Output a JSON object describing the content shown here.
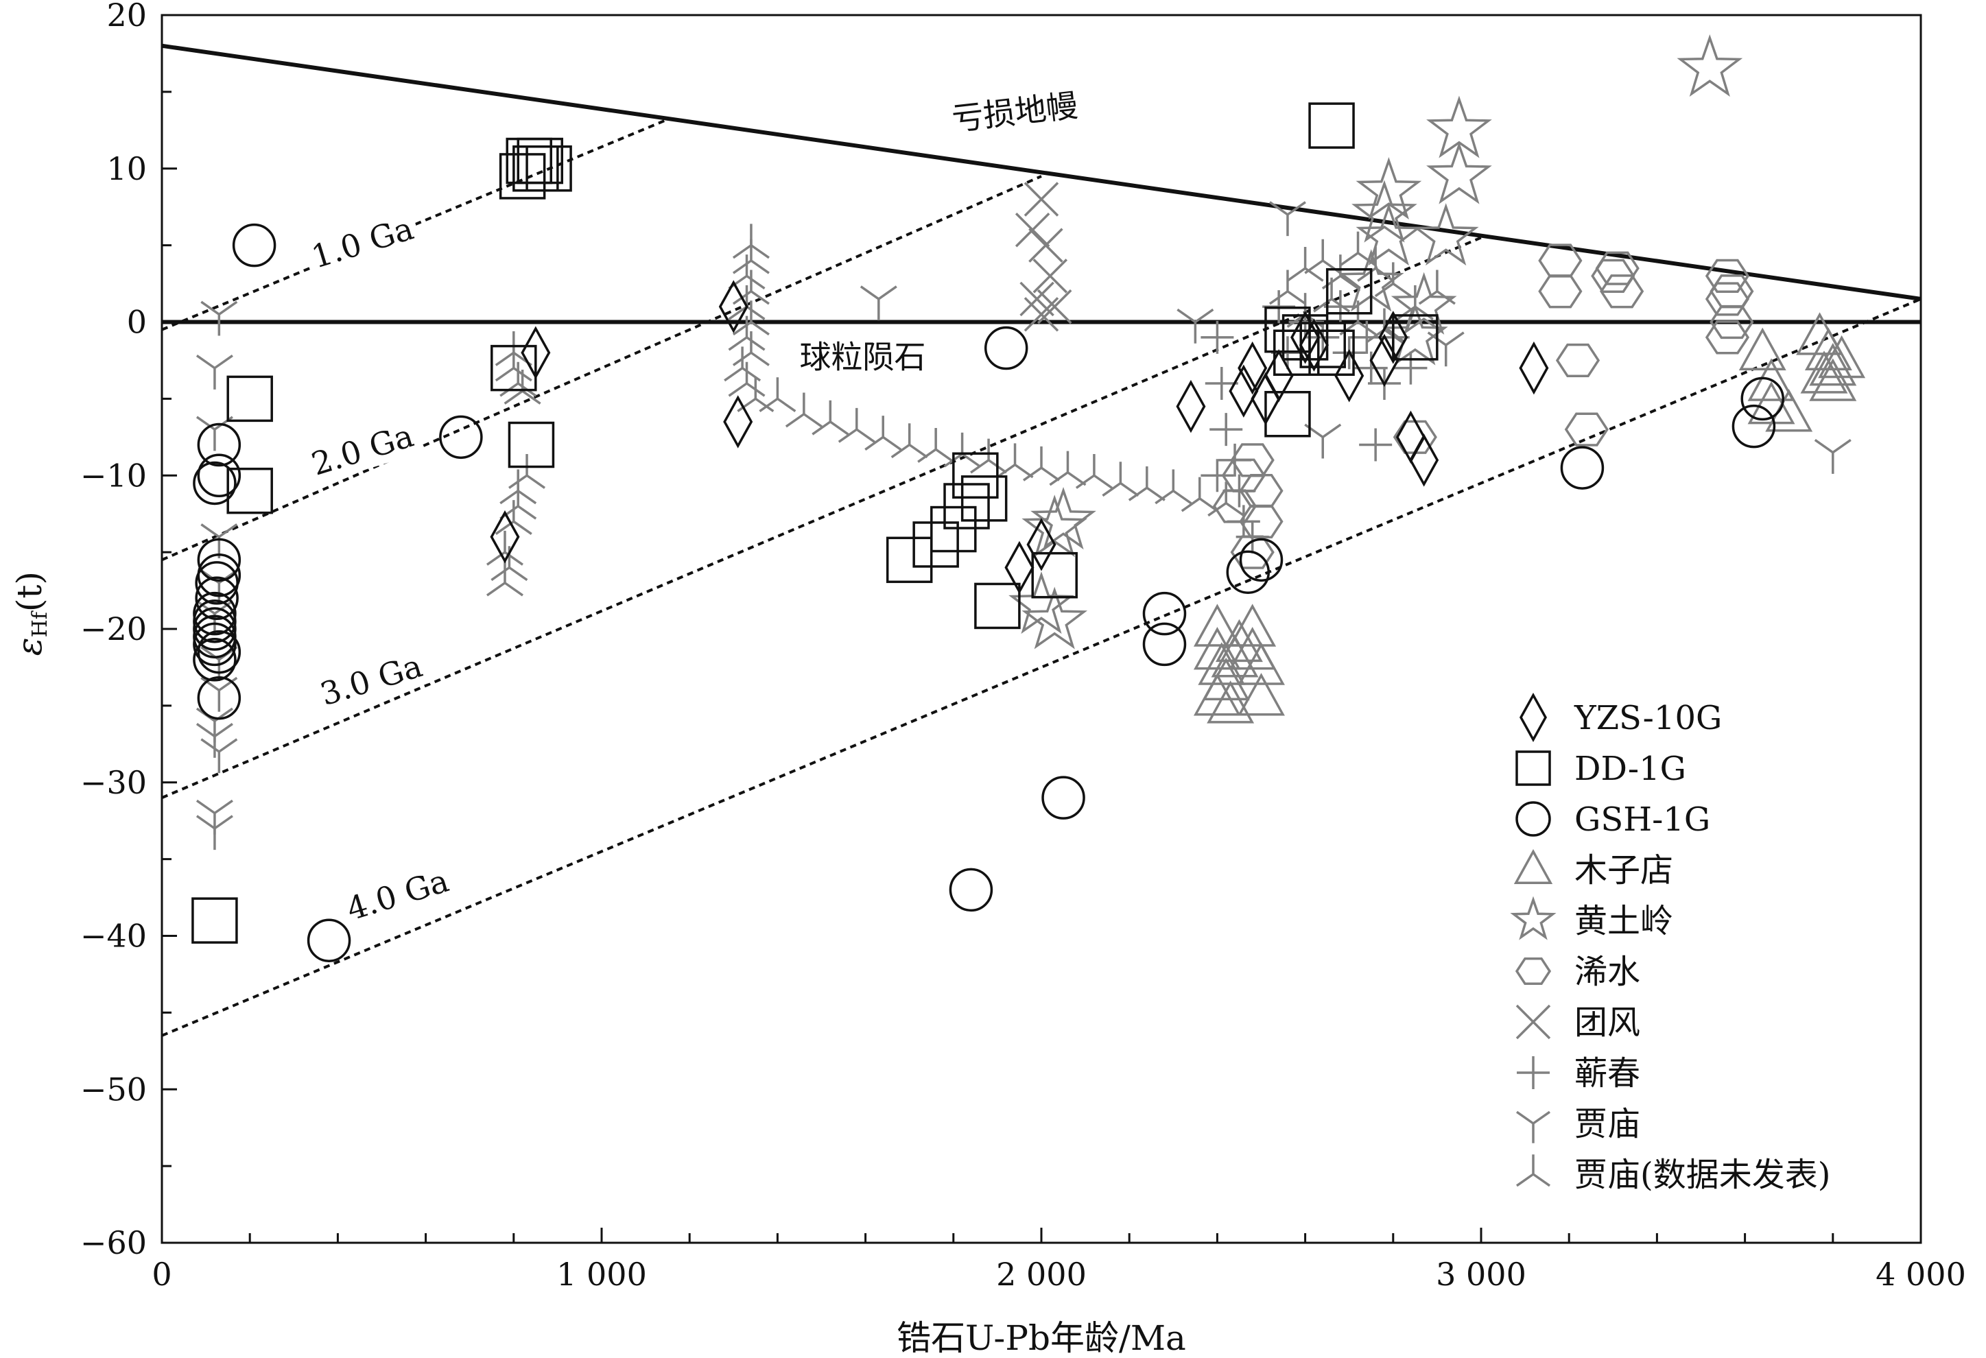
{
  "chart_data": {
    "type": "scatter",
    "title": "",
    "xlabel": "锆石U-Pb年龄/Ma",
    "ylabel_main": "ε",
    "ylabel_sub": "Hf",
    "ylabel_tail": "(t)",
    "xlim": [
      0,
      4000
    ],
    "ylim": [
      -60,
      20
    ],
    "grid": false,
    "legend_position": "bottom-right",
    "x_ticks": [
      {
        "value": 0,
        "label": "0"
      },
      {
        "value": 1000,
        "label": "1 000"
      },
      {
        "value": 2000,
        "label": "2 000"
      },
      {
        "value": 3000,
        "label": "3 000"
      },
      {
        "value": 4000,
        "label": "4 000"
      }
    ],
    "y_ticks": [
      {
        "value": 20,
        "label": "20"
      },
      {
        "value": 10,
        "label": "10"
      },
      {
        "value": 0,
        "label": "0"
      },
      {
        "value": -10,
        "label": "−10"
      },
      {
        "value": -20,
        "label": "−20"
      },
      {
        "value": -30,
        "label": "−30"
      },
      {
        "value": -40,
        "label": "−40"
      },
      {
        "value": -50,
        "label": "−50"
      },
      {
        "value": -60,
        "label": "−60"
      }
    ],
    "reference_lines": [
      {
        "label": "亏损地幔",
        "style": "solid",
        "x": [
          0,
          4000
        ],
        "y": [
          18,
          1.5
        ],
        "label_at": [
          1800,
          12.5
        ],
        "angle": -6.5
      },
      {
        "label": "球粒陨石",
        "style": "solid",
        "x": [
          0,
          4000
        ],
        "y": [
          0,
          0
        ],
        "label_at": [
          1450,
          -3
        ]
      },
      {
        "label": "1.0 Ga",
        "style": "dotted",
        "x": [
          0,
          1150
        ],
        "y": [
          -0.5,
          13.2
        ],
        "label_at": [
          350,
          3.5
        ],
        "angle": -17
      },
      {
        "label": "2.0 Ga",
        "style": "dotted",
        "x": [
          0,
          2000
        ],
        "y": [
          -15.5,
          9.5
        ],
        "label_at": [
          350,
          -10
        ],
        "angle": -17
      },
      {
        "label": "3.0 Ga",
        "style": "dotted",
        "x": [
          0,
          3000
        ],
        "y": [
          -31,
          5.5
        ],
        "label_at": [
          370,
          -25
        ],
        "angle": -17
      },
      {
        "label": "4.0 Ga",
        "style": "dotted",
        "x": [
          0,
          4000
        ],
        "y": [
          -46.5,
          1.5
        ],
        "label_at": [
          430,
          -39
        ],
        "angle": -17
      }
    ],
    "series": [
      {
        "name": "YZS-10G",
        "marker": "diamond",
        "color": "#111111",
        "points": [
          [
            1300,
            1
          ],
          [
            1310,
            -6.5
          ],
          [
            850,
            -2
          ],
          [
            780,
            -14
          ],
          [
            1950,
            -16
          ],
          [
            2000,
            -14.5
          ],
          [
            2340,
            -5.5
          ],
          [
            2460,
            -4.5
          ],
          [
            2480,
            -3
          ],
          [
            2510,
            -5
          ],
          [
            2540,
            -3.5
          ],
          [
            2600,
            -1
          ],
          [
            2620,
            -1.5
          ],
          [
            2700,
            -3.5
          ],
          [
            2780,
            -2.5
          ],
          [
            2800,
            -1
          ],
          [
            2840,
            -7.5
          ],
          [
            2870,
            -9
          ],
          [
            3120,
            -3
          ]
        ]
      },
      {
        "name": "DD-1G",
        "marker": "square",
        "color": "#111111",
        "points": [
          [
            820,
            9.5
          ],
          [
            835,
            10.5
          ],
          [
            850,
            10
          ],
          [
            860,
            10.5
          ],
          [
            880,
            10
          ],
          [
            200,
            -5
          ],
          [
            200,
            -11
          ],
          [
            800,
            -3
          ],
          [
            840,
            -8
          ],
          [
            1800,
            -13.5
          ],
          [
            1830,
            -12
          ],
          [
            1850,
            -10
          ],
          [
            1870,
            -11.5
          ],
          [
            1700,
            -15.5
          ],
          [
            1760,
            -14.5
          ],
          [
            1900,
            -18.5
          ],
          [
            2030,
            -16.5
          ],
          [
            2560,
            -0.5
          ],
          [
            2580,
            -2
          ],
          [
            2600,
            -1
          ],
          [
            2640,
            -1.5
          ],
          [
            2660,
            -2
          ],
          [
            2700,
            2
          ],
          [
            2850,
            -1
          ],
          [
            2560,
            -6
          ],
          [
            2660,
            12.8
          ],
          [
            120,
            -39
          ]
        ]
      },
      {
        "name": "GSH-1G",
        "marker": "circle",
        "color": "#111111",
        "points": [
          [
            210,
            5
          ],
          [
            130,
            -8
          ],
          [
            130,
            -10
          ],
          [
            120,
            -10.5
          ],
          [
            130,
            -15.5
          ],
          [
            130,
            -16.5
          ],
          [
            125,
            -17
          ],
          [
            125,
            -18
          ],
          [
            120,
            -19
          ],
          [
            120,
            -19.5
          ],
          [
            120,
            -20
          ],
          [
            120,
            -20.5
          ],
          [
            120,
            -21
          ],
          [
            130,
            -21.5
          ],
          [
            120,
            -22
          ],
          [
            130,
            -24.5
          ],
          [
            680,
            -7.5
          ],
          [
            1920,
            -1.7
          ],
          [
            2280,
            -19
          ],
          [
            2280,
            -21
          ],
          [
            2470,
            -16.3
          ],
          [
            2500,
            -15.5
          ],
          [
            3230,
            -9.5
          ],
          [
            3620,
            -6.8
          ],
          [
            3640,
            -5
          ],
          [
            2050,
            -31
          ],
          [
            1840,
            -37
          ],
          [
            380,
            -40.3
          ]
        ]
      },
      {
        "name": "木子店",
        "marker": "triangle",
        "color": "#808080",
        "points": [
          [
            2400,
            -20
          ],
          [
            2400,
            -21.5
          ],
          [
            2410,
            -22.5
          ],
          [
            2420,
            -23.5
          ],
          [
            2400,
            -24.5
          ],
          [
            2430,
            -25
          ],
          [
            2440,
            -22
          ],
          [
            2450,
            -21
          ],
          [
            2480,
            -20
          ],
          [
            2480,
            -21.5
          ],
          [
            2500,
            -22.5
          ],
          [
            2500,
            -24.5
          ],
          [
            3640,
            -2
          ],
          [
            3660,
            -4
          ],
          [
            3660,
            -5.5
          ],
          [
            3700,
            -6
          ],
          [
            3770,
            -1
          ],
          [
            3790,
            -2
          ],
          [
            3800,
            -3
          ],
          [
            3820,
            -2.5
          ],
          [
            3780,
            -3.5
          ],
          [
            3800,
            -4
          ]
        ]
      },
      {
        "name": "黄土岭",
        "marker": "star",
        "color": "#808080",
        "points": [
          [
            3520,
            16.5
          ],
          [
            2950,
            12.5
          ],
          [
            2950,
            9.5
          ],
          [
            2790,
            8.5
          ],
          [
            2780,
            7
          ],
          [
            2790,
            5.5
          ],
          [
            2920,
            5.5
          ],
          [
            2750,
            2.5
          ],
          [
            2870,
            1
          ],
          [
            2850,
            -1
          ],
          [
            2030,
            -13.5
          ],
          [
            2000,
            -18.5
          ],
          [
            2030,
            -19.5
          ],
          [
            2050,
            -13
          ]
        ]
      },
      {
        "name": "浠水",
        "marker": "hexagon",
        "color": "#808080",
        "points": [
          [
            3180,
            4
          ],
          [
            3180,
            2
          ],
          [
            3310,
            3.5
          ],
          [
            3320,
            2
          ],
          [
            3300,
            3
          ],
          [
            3560,
            3
          ],
          [
            3570,
            2
          ],
          [
            3560,
            1.5
          ],
          [
            3570,
            0
          ],
          [
            3560,
            -1
          ],
          [
            3220,
            -2.5
          ],
          [
            3240,
            -7
          ],
          [
            2480,
            -9
          ],
          [
            2500,
            -11
          ],
          [
            2500,
            -13
          ],
          [
            2480,
            -15
          ],
          [
            2440,
            -12
          ],
          [
            2460,
            -10
          ],
          [
            2850,
            -7.5
          ]
        ]
      },
      {
        "name": "团风",
        "marker": "x",
        "color": "#808080",
        "points": [
          [
            2000,
            8
          ],
          [
            1980,
            6
          ],
          [
            2010,
            5
          ],
          [
            2020,
            3
          ],
          [
            1990,
            1.5
          ],
          [
            2000,
            0.5
          ],
          [
            2030,
            1
          ]
        ]
      },
      {
        "name": "蕲春",
        "marker": "plus",
        "color": "#808080",
        "points": [
          [
            2540,
            1
          ],
          [
            2560,
            -2
          ],
          [
            2600,
            0
          ],
          [
            2640,
            -1
          ],
          [
            2680,
            1
          ],
          [
            2700,
            -2
          ],
          [
            2740,
            -1
          ],
          [
            2750,
            -3
          ],
          [
            2760,
            -8
          ],
          [
            2780,
            -4
          ],
          [
            2800,
            -1
          ],
          [
            2840,
            -3
          ],
          [
            2400,
            -1
          ],
          [
            2410,
            -4
          ],
          [
            2420,
            -7
          ],
          [
            2440,
            -9
          ],
          [
            2450,
            -11
          ],
          [
            2460,
            -13
          ],
          [
            2480,
            -14
          ],
          [
            2400,
            -10
          ]
        ]
      },
      {
        "name": "贾庙",
        "marker": "tri-down",
        "color": "#808080",
        "points": [
          [
            130,
            0.5
          ],
          [
            120,
            -3
          ],
          [
            120,
            -7
          ],
          [
            130,
            -14
          ],
          [
            130,
            -17
          ],
          [
            120,
            -19
          ],
          [
            130,
            -22
          ],
          [
            130,
            -24
          ],
          [
            120,
            -26
          ],
          [
            120,
            -27
          ],
          [
            130,
            -28
          ],
          [
            120,
            -32
          ],
          [
            120,
            -33
          ],
          [
            1630,
            1.5
          ],
          [
            2560,
            7
          ],
          [
            2640,
            -7.5
          ],
          [
            2350,
            0
          ],
          [
            3800,
            -8.5
          ],
          [
            2920,
            -1.5
          ]
        ]
      },
      {
        "name": "贾庙(数据未发表)",
        "marker": "tri-up",
        "color": "#808080",
        "points": [
          [
            1340,
            5
          ],
          [
            1340,
            4
          ],
          [
            1330,
            3
          ],
          [
            1340,
            2
          ],
          [
            1330,
            1
          ],
          [
            1340,
            0
          ],
          [
            1330,
            -1
          ],
          [
            1340,
            -2
          ],
          [
            1320,
            -3
          ],
          [
            1330,
            -4
          ],
          [
            1350,
            -5
          ],
          [
            800,
            -2
          ],
          [
            800,
            -3
          ],
          [
            810,
            -4
          ],
          [
            820,
            -4.5
          ],
          [
            830,
            -10
          ],
          [
            810,
            -11
          ],
          [
            810,
            -12
          ],
          [
            800,
            -13
          ],
          [
            780,
            -15
          ],
          [
            790,
            -16
          ],
          [
            780,
            -17
          ],
          [
            1400,
            -5
          ],
          [
            1460,
            -6
          ],
          [
            1520,
            -6.5
          ],
          [
            1580,
            -7
          ],
          [
            1640,
            -7.5
          ],
          [
            1700,
            -8
          ],
          [
            1760,
            -8.3
          ],
          [
            1820,
            -8.6
          ],
          [
            1880,
            -9
          ],
          [
            1940,
            -9.3
          ],
          [
            2000,
            -9.5
          ],
          [
            2060,
            -9.8
          ],
          [
            2120,
            -10
          ],
          [
            2180,
            -10.5
          ],
          [
            2240,
            -10.8
          ],
          [
            2300,
            -11
          ],
          [
            2360,
            -11.5
          ],
          [
            2420,
            -11.8
          ],
          [
            2600,
            3.5
          ],
          [
            2640,
            4
          ],
          [
            2680,
            3
          ],
          [
            2720,
            4.5
          ],
          [
            2760,
            3.5
          ],
          [
            2800,
            2.5
          ],
          [
            2850,
            1
          ],
          [
            2900,
            2
          ],
          [
            2560,
            2
          ],
          [
            2600,
            0.5
          ],
          [
            2660,
            1.5
          ],
          [
            2720,
            0
          ],
          [
            2780,
            -0.5
          ]
        ]
      }
    ]
  }
}
